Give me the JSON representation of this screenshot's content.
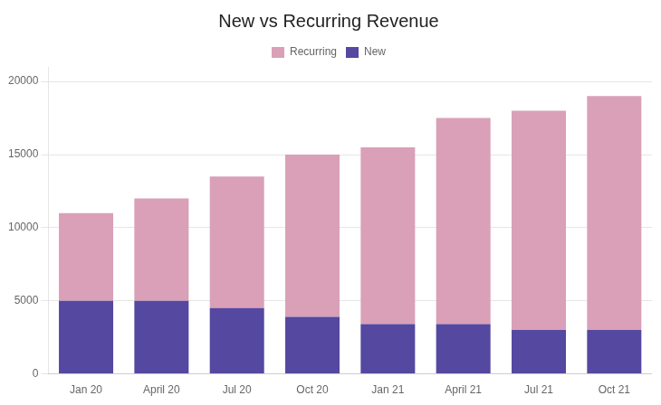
{
  "chart_data": {
    "type": "bar",
    "title": "New vs Recurring Revenue",
    "categories": [
      "Jan 20",
      "April 20",
      "Jul 20",
      "Oct 20",
      "Jan 21",
      "April 21",
      "Jul 21",
      "Oct 21"
    ],
    "series": [
      {
        "name": "New",
        "color": "#5448a0",
        "values": [
          5000,
          5000,
          4500,
          3900,
          3400,
          3400,
          3000,
          3000
        ]
      },
      {
        "name": "Recurring",
        "color": "#d9a0b8",
        "values": [
          6000,
          7000,
          9000,
          11100,
          12100,
          14100,
          15000,
          16000
        ]
      }
    ],
    "stacked": true,
    "ylim": [
      0,
      21000
    ],
    "yticks": [
      0,
      5000,
      10000,
      15000,
      20000
    ],
    "grid": true,
    "legend": "top"
  }
}
